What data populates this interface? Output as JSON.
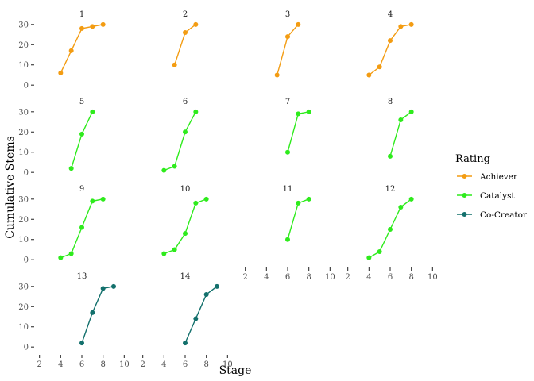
{
  "chart_data": {
    "type": "line",
    "facet_layout": "wrap",
    "xlabel": "Stage",
    "ylabel": "Cumulative Stems",
    "xlim": [
      1.8,
      10.2
    ],
    "ylim": [
      -1.5,
      31.5
    ],
    "x_ticks": [
      2,
      4,
      6,
      8,
      10
    ],
    "y_ticks": [
      0,
      10,
      20,
      30
    ],
    "grid": false,
    "legend": {
      "title": "Rating",
      "placement": "right",
      "entries": [
        {
          "name": "Achiever",
          "color": "#F39C12"
        },
        {
          "name": "Catalyst",
          "color": "#2EEB1C"
        },
        {
          "name": "Co-Creator",
          "color": "#13706C"
        }
      ]
    },
    "panels": [
      {
        "label": "1",
        "rating": "Achiever",
        "x": [
          4,
          5,
          6,
          7,
          8
        ],
        "y": [
          6,
          17,
          28,
          29,
          30
        ]
      },
      {
        "label": "2",
        "rating": "Achiever",
        "x": [
          5,
          6,
          7
        ],
        "y": [
          10,
          26,
          30
        ]
      },
      {
        "label": "3",
        "rating": "Achiever",
        "x": [
          5,
          6,
          7
        ],
        "y": [
          5,
          24,
          30
        ]
      },
      {
        "label": "4",
        "rating": "Achiever",
        "x": [
          4,
          5,
          6,
          7,
          8
        ],
        "y": [
          5,
          9,
          22,
          29,
          30
        ]
      },
      {
        "label": "5",
        "rating": "Catalyst",
        "x": [
          5,
          6,
          7
        ],
        "y": [
          2,
          19,
          30
        ]
      },
      {
        "label": "6",
        "rating": "Catalyst",
        "x": [
          4,
          5,
          6,
          7
        ],
        "y": [
          1,
          3,
          20,
          30
        ]
      },
      {
        "label": "7",
        "rating": "Catalyst",
        "x": [
          6,
          7,
          8
        ],
        "y": [
          10,
          29,
          30
        ]
      },
      {
        "label": "8",
        "rating": "Catalyst",
        "x": [
          6,
          7,
          8
        ],
        "y": [
          8,
          26,
          30
        ]
      },
      {
        "label": "9",
        "rating": "Catalyst",
        "x": [
          4,
          5,
          6,
          7,
          8
        ],
        "y": [
          1,
          3,
          16,
          29,
          30
        ]
      },
      {
        "label": "10",
        "rating": "Catalyst",
        "x": [
          4,
          5,
          6,
          7,
          8
        ],
        "y": [
          3,
          5,
          13,
          28,
          30
        ]
      },
      {
        "label": "11",
        "rating": "Catalyst",
        "x": [
          6,
          7,
          8
        ],
        "y": [
          10,
          28,
          30
        ]
      },
      {
        "label": "12",
        "rating": "Catalyst",
        "x": [
          4,
          5,
          6,
          7,
          8
        ],
        "y": [
          1,
          4,
          15,
          26,
          30
        ]
      },
      {
        "label": "13",
        "rating": "Co-Creator",
        "x": [
          6,
          7,
          8,
          9
        ],
        "y": [
          2,
          17,
          29,
          30
        ]
      },
      {
        "label": "14",
        "rating": "Co-Creator",
        "x": [
          6,
          7,
          8,
          9
        ],
        "y": [
          2,
          14,
          26,
          30
        ]
      }
    ]
  }
}
